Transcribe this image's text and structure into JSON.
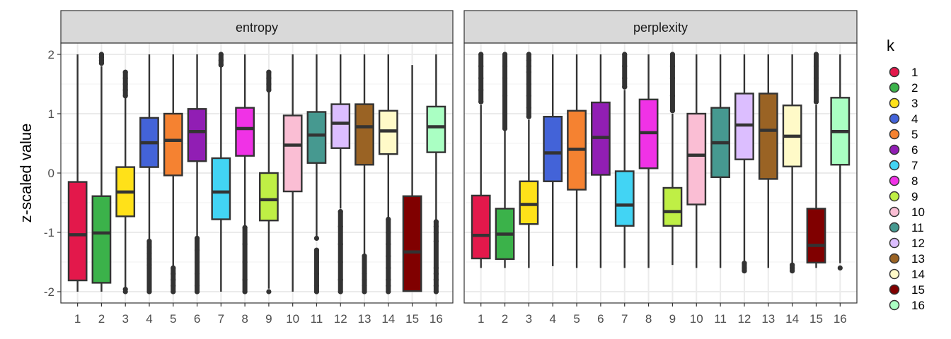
{
  "chart_data": {
    "type": "boxplot",
    "ylabel": "z-scaled value",
    "xlabel": "",
    "ylim": [
      -2.2,
      2.2
    ],
    "yticks": [
      2,
      1,
      0,
      -1,
      -2
    ],
    "ytick_labels": [
      "2",
      "1",
      "0",
      "-1",
      "-2"
    ],
    "categories": [
      "1",
      "2",
      "3",
      "4",
      "5",
      "6",
      "7",
      "8",
      "9",
      "10",
      "11",
      "12",
      "13",
      "14",
      "15",
      "16"
    ],
    "grid": true,
    "legend": {
      "title": "k",
      "position": "right",
      "labels": [
        "1",
        "2",
        "3",
        "4",
        "5",
        "6",
        "7",
        "8",
        "9",
        "10",
        "11",
        "12",
        "13",
        "14",
        "15",
        "16"
      ],
      "colors": [
        "#e3184b",
        "#3bb24a",
        "#ffe119",
        "#4363d8",
        "#f58231",
        "#911eb4",
        "#42d4f4",
        "#f032e6",
        "#bfef45",
        "#fabed4",
        "#469990",
        "#dcbeff",
        "#9a6324",
        "#fffac8",
        "#800000",
        "#aaffc3"
      ]
    },
    "panels": [
      {
        "title": "entropy",
        "boxes": [
          {
            "k": "1",
            "low": -2.0,
            "q1": -1.81,
            "median": -1.04,
            "q3": -0.15,
            "high": 2.0,
            "outliers": []
          },
          {
            "k": "2",
            "low": -2.0,
            "q1": -1.85,
            "median": -1.01,
            "q3": -0.39,
            "high": 1.8,
            "outliers": [
              1.85,
              1.9,
              1.95,
              2.0
            ]
          },
          {
            "k": "3",
            "low": -1.95,
            "q1": -0.73,
            "median": -0.32,
            "q3": 0.1,
            "high": 1.27,
            "outliers": [
              -2.0,
              -1.96,
              1.3,
              1.4,
              1.5,
              1.6,
              1.7
            ]
          },
          {
            "k": "4",
            "low": -1.12,
            "q1": 0.1,
            "median": 0.51,
            "q3": 0.93,
            "high": 2.0,
            "outliers": [
              -1.15,
              -1.25,
              -1.35,
              -1.45,
              -1.55,
              -1.6,
              -2.0
            ]
          },
          {
            "k": "5",
            "low": -1.57,
            "q1": -0.04,
            "median": 0.55,
            "q3": 1.0,
            "high": 2.0,
            "outliers": [
              -1.6,
              -1.7,
              -1.8,
              -1.9,
              -2.0
            ]
          },
          {
            "k": "6",
            "low": -1.08,
            "q1": 0.2,
            "median": 0.7,
            "q3": 1.08,
            "high": 2.0,
            "outliers": [
              -1.1,
              -1.3,
              -1.5,
              -1.7,
              -1.9,
              -2.0
            ]
          },
          {
            "k": "7",
            "low": -2.0,
            "q1": -0.78,
            "median": -0.32,
            "q3": 0.25,
            "high": 1.8,
            "outliers": [
              1.82,
              1.9,
              2.0
            ]
          },
          {
            "k": "8",
            "low": -0.9,
            "q1": 0.29,
            "median": 0.75,
            "q3": 1.1,
            "high": 2.0,
            "outliers": [
              -0.92,
              -1.2,
              -1.5,
              -1.8,
              -2.0
            ]
          },
          {
            "k": "9",
            "low": -1.95,
            "q1": -0.8,
            "median": -0.45,
            "q3": 0.0,
            "high": 1.38,
            "outliers": [
              -2.0,
              1.4,
              1.5,
              1.6,
              1.7
            ]
          },
          {
            "k": "10",
            "low": -2.0,
            "q1": -0.31,
            "median": 0.47,
            "q3": 0.97,
            "high": 2.0,
            "outliers": []
          },
          {
            "k": "11",
            "low": -1.1,
            "q1": 0.17,
            "median": 0.64,
            "q3": 1.03,
            "high": 2.0,
            "outliers": [
              -1.1,
              -1.3,
              -1.5,
              -1.7,
              -1.9,
              -2.0
            ]
          },
          {
            "k": "12",
            "low": -0.6,
            "q1": 0.42,
            "median": 0.84,
            "q3": 1.16,
            "high": 2.0,
            "outliers": [
              -0.65,
              -0.9,
              -1.2,
              -1.5,
              -1.8,
              -2.0
            ]
          },
          {
            "k": "13",
            "low": -1.39,
            "q1": 0.14,
            "median": 0.78,
            "q3": 1.16,
            "high": 2.0,
            "outliers": [
              -1.4,
              -1.6,
              -1.7,
              -1.8,
              -1.9,
              -2.0
            ]
          },
          {
            "k": "14",
            "low": -0.75,
            "q1": 0.32,
            "median": 0.71,
            "q3": 1.05,
            "high": 2.0,
            "outliers": [
              -0.78,
              -1.0,
              -1.2,
              -1.4,
              -1.6,
              -1.8,
              -1.9,
              -2.0
            ]
          },
          {
            "k": "15",
            "low": -1.99,
            "q1": -1.99,
            "median": -1.33,
            "q3": -0.39,
            "high": 1.82,
            "outliers": []
          },
          {
            "k": "16",
            "low": -0.8,
            "q1": 0.35,
            "median": 0.78,
            "q3": 1.12,
            "high": 2.0,
            "outliers": [
              -0.82,
              -0.9,
              -1.0,
              -1.15,
              -1.6,
              -1.7,
              -1.8,
              -1.9,
              -2.0
            ]
          }
        ]
      },
      {
        "title": "perplexity",
        "boxes": [
          {
            "k": "1",
            "low": -1.6,
            "q1": -1.44,
            "median": -1.05,
            "q3": -0.38,
            "high": 1.15,
            "outliers": [
              1.2,
              1.4,
              1.6,
              1.8,
              2.0
            ]
          },
          {
            "k": "2",
            "low": -1.6,
            "q1": -1.45,
            "median": -1.03,
            "q3": -0.6,
            "high": 0.72,
            "outliers": [
              0.75,
              1.0,
              1.3,
              1.6,
              1.8,
              2.0
            ]
          },
          {
            "k": "3",
            "low": -1.6,
            "q1": -0.86,
            "median": -0.53,
            "q3": -0.14,
            "high": 0.9,
            "outliers": [
              0.95,
              1.1,
              1.3,
              1.5,
              1.7,
              1.8,
              1.9,
              2.0
            ]
          },
          {
            "k": "4",
            "low": -1.57,
            "q1": -0.14,
            "median": 0.34,
            "q3": 0.95,
            "high": 2.0,
            "outliers": []
          },
          {
            "k": "5",
            "low": -1.6,
            "q1": -0.28,
            "median": 0.4,
            "q3": 1.05,
            "high": 2.0,
            "outliers": []
          },
          {
            "k": "6",
            "low": -1.6,
            "q1": -0.03,
            "median": 0.6,
            "q3": 1.19,
            "high": 2.0,
            "outliers": []
          },
          {
            "k": "7",
            "low": -1.6,
            "q1": -0.89,
            "median": -0.54,
            "q3": 0.03,
            "high": 1.4,
            "outliers": [
              1.45,
              1.6,
              1.8,
              2.0
            ]
          },
          {
            "k": "8",
            "low": -1.6,
            "q1": 0.08,
            "median": 0.68,
            "q3": 1.24,
            "high": 2.0,
            "outliers": []
          },
          {
            "k": "9",
            "low": -1.55,
            "q1": -0.89,
            "median": -0.65,
            "q3": -0.25,
            "high": 1.0,
            "outliers": [
              1.05,
              1.3,
              1.6,
              1.8,
              2.0
            ]
          },
          {
            "k": "10",
            "low": -1.6,
            "q1": -0.53,
            "median": 0.3,
            "q3": 1.0,
            "high": 2.0,
            "outliers": []
          },
          {
            "k": "11",
            "low": -1.6,
            "q1": -0.07,
            "median": 0.51,
            "q3": 1.1,
            "high": 2.0,
            "outliers": []
          },
          {
            "k": "12",
            "low": -1.5,
            "q1": 0.23,
            "median": 0.81,
            "q3": 1.34,
            "high": 2.0,
            "outliers": [
              -1.52,
              -1.6,
              -1.65
            ]
          },
          {
            "k": "13",
            "low": -1.6,
            "q1": -0.1,
            "median": 0.72,
            "q3": 1.34,
            "high": 2.0,
            "outliers": []
          },
          {
            "k": "14",
            "low": -1.53,
            "q1": 0.11,
            "median": 0.62,
            "q3": 1.14,
            "high": 2.0,
            "outliers": [
              -1.55,
              -1.6,
              -1.65
            ]
          },
          {
            "k": "15",
            "low": -1.6,
            "q1": -1.51,
            "median": -1.22,
            "q3": -0.6,
            "high": 1.15,
            "outliers": [
              1.2,
              1.4,
              1.6,
              1.8,
              2.0
            ]
          },
          {
            "k": "16",
            "low": -1.52,
            "q1": 0.14,
            "median": 0.7,
            "q3": 1.27,
            "high": 2.0,
            "outliers": [
              -1.6
            ]
          }
        ]
      }
    ]
  }
}
